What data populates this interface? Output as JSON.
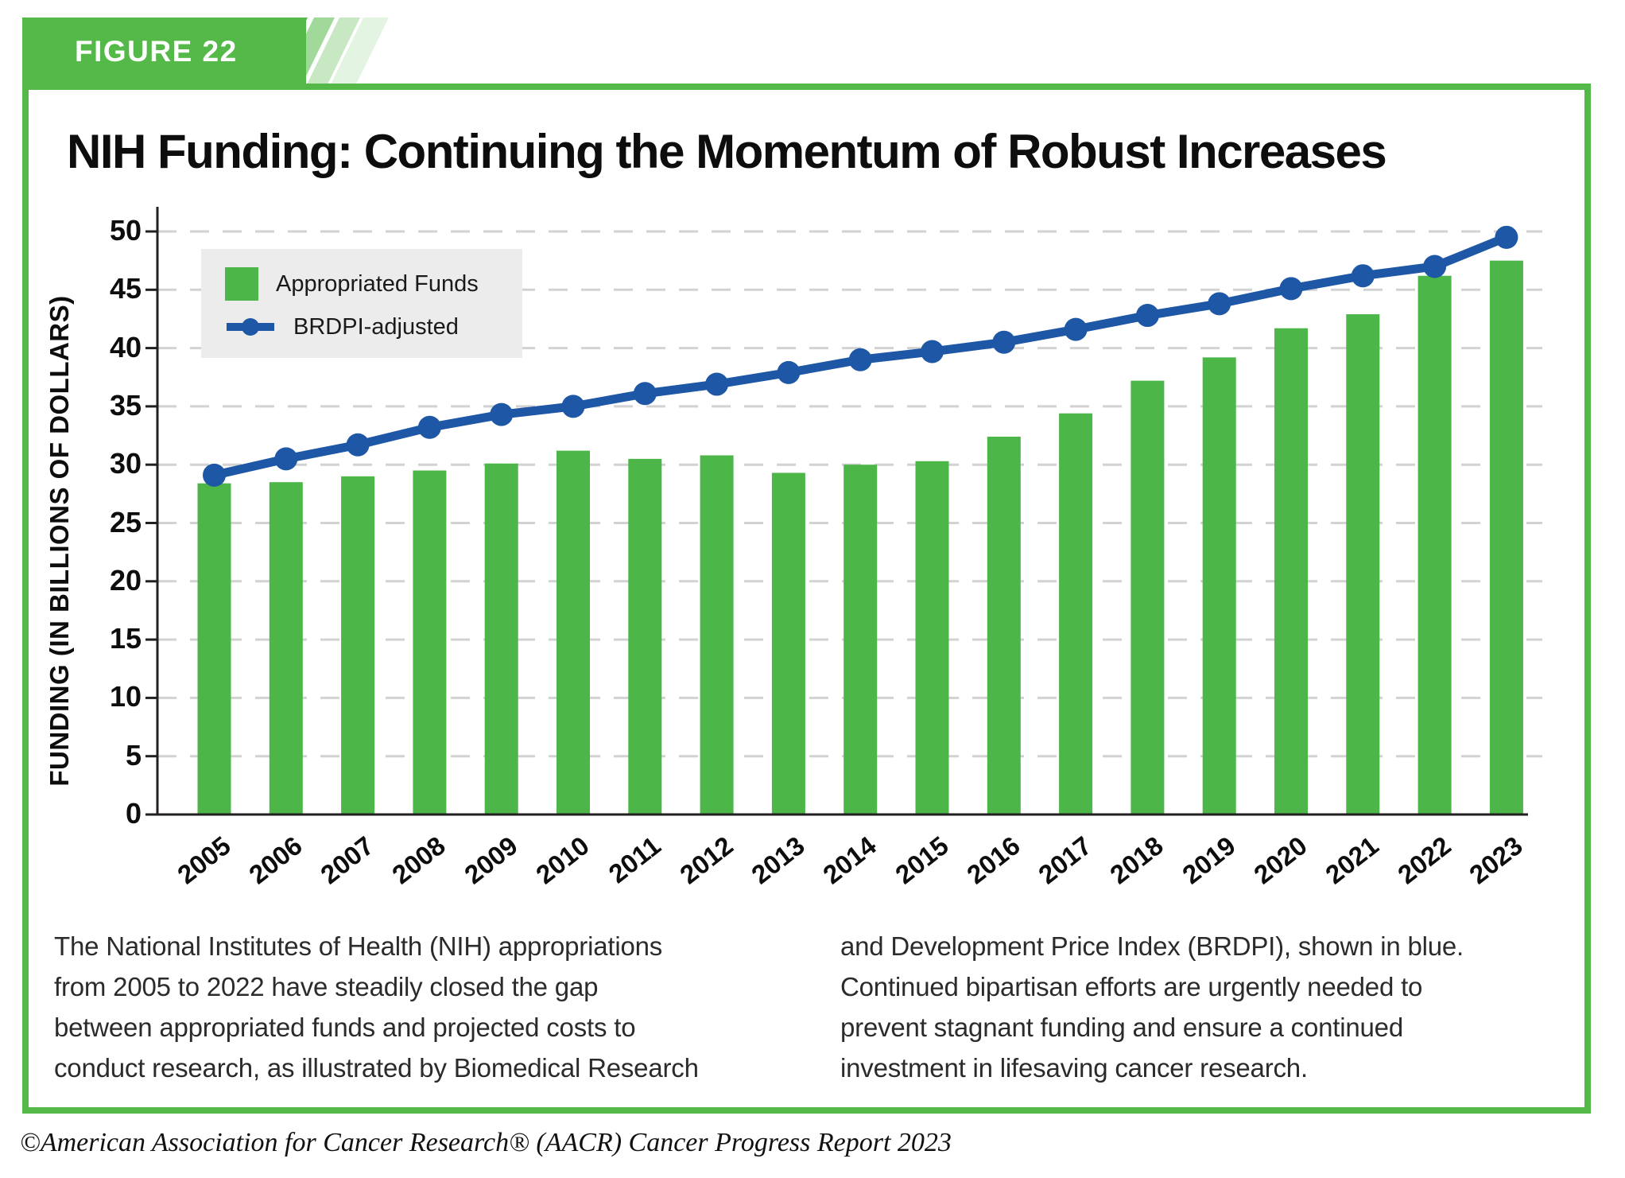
{
  "figure_label": "FIGURE 22",
  "title": "NIH Funding: Continuing the Momentum of Robust Increases",
  "legend": {
    "bars_label": "Appropriated Funds",
    "line_label": "BRDPI-adjusted"
  },
  "chart_data": {
    "type": "bar",
    "title": "NIH Funding: Continuing the Momentum of Robust Increases",
    "categories": [
      "2005",
      "2006",
      "2007",
      "2008",
      "2009",
      "2010",
      "2011",
      "2012",
      "2013",
      "2014",
      "2015",
      "2016",
      "2017",
      "2018",
      "2019",
      "2020",
      "2021",
      "2022",
      "2023"
    ],
    "series": [
      {
        "name": "Appropriated Funds",
        "type": "bar",
        "values": [
          28.4,
          28.5,
          29.0,
          29.5,
          30.1,
          31.2,
          30.5,
          30.8,
          29.3,
          30.0,
          30.3,
          32.4,
          34.4,
          37.2,
          39.2,
          41.7,
          42.9,
          46.2,
          47.5
        ]
      },
      {
        "name": "BRDPI-adjusted",
        "type": "line",
        "values": [
          29.1,
          30.5,
          31.7,
          33.2,
          34.3,
          35.0,
          36.1,
          36.9,
          37.9,
          39.0,
          39.7,
          40.5,
          41.6,
          42.8,
          43.8,
          45.1,
          46.2,
          47.0,
          49.5
        ]
      }
    ],
    "xlabel": "",
    "ylabel": "FUNDING (IN BILLIONS OF DOLLARS)",
    "ylim": [
      0,
      50
    ],
    "y_tick_step": 5,
    "grid": "horizontal-dashed",
    "legend_position": "top-left-inside"
  },
  "colors": {
    "bar_green": "#4cb648",
    "line_blue": "#1d57a5",
    "badge_green": "#54b949",
    "grid_gray": "#d2d2d2",
    "axis_black": "#231f20",
    "legend_bg": "#ececec"
  },
  "caption_left": {
    "lines": [
      "The National Institutes of Health (NIH) appropriations",
      "from 2005 to 2022 have steadily closed the gap",
      "between appropriated funds and projected costs to",
      "conduct research, as illustrated by Biomedical Research"
    ]
  },
  "caption_right": {
    "lines": [
      "and Development Price Index (BRDPI), shown in blue.",
      "Continued bipartisan efforts are urgently needed to",
      "prevent stagnant funding and ensure a continued",
      "investment in lifesaving cancer research."
    ]
  },
  "footer": "©American Association for Cancer Research® (AACR) Cancer Progress Report 2023"
}
